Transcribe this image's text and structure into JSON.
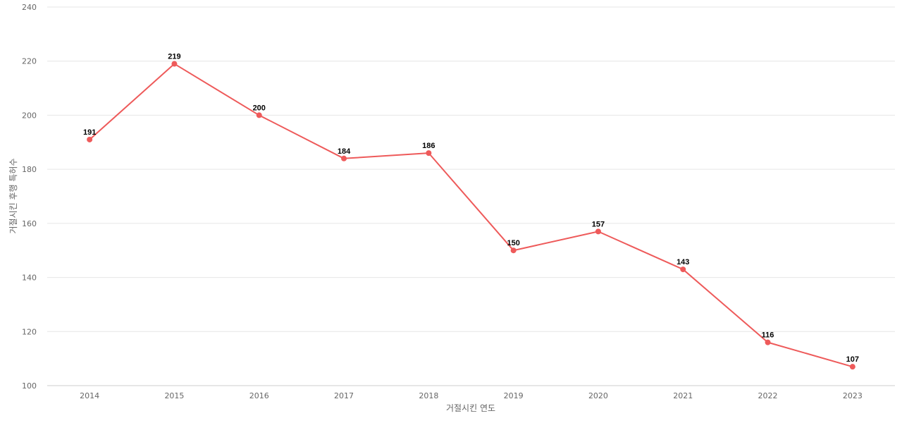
{
  "chart_data": {
    "type": "line",
    "categories": [
      "2014",
      "2015",
      "2016",
      "2017",
      "2018",
      "2019",
      "2020",
      "2021",
      "2022",
      "2023"
    ],
    "series": [
      {
        "values": [
          191,
          219,
          200,
          184,
          186,
          150,
          157,
          143,
          116,
          107
        ],
        "color": "#ee5a5a"
      }
    ],
    "xlabel": "거절시킨 연도",
    "ylabel": "거절시킨 후행 특허수",
    "ylim": [
      100,
      240
    ],
    "yticks": [
      100,
      120,
      140,
      160,
      180,
      200,
      220,
      240
    ],
    "grid": true,
    "legend": "none",
    "data_labels": true
  }
}
